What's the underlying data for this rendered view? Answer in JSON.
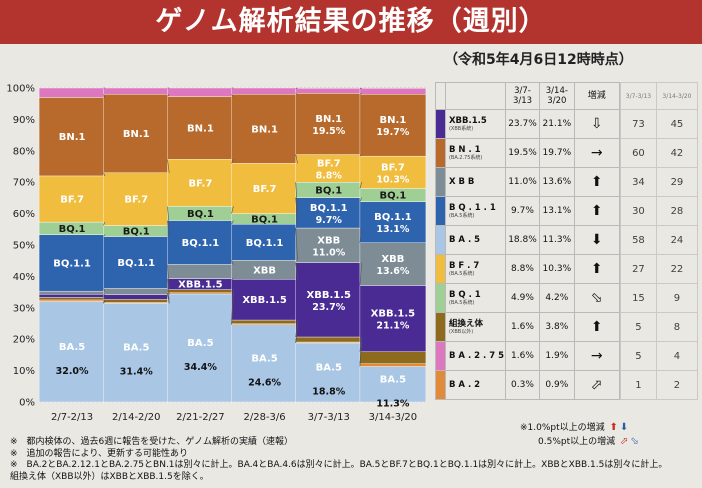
{
  "title": "ゲノム解析結果の推移（週別）",
  "subtitle": "（令和5年4月6日12時時点）",
  "chart_data": {
    "type": "bar",
    "stacked": true,
    "categories": [
      "2/7-2/13",
      "2/14-2/20",
      "2/21-2/27",
      "2/28-3/6",
      "3/7-3/13",
      "3/14-3/20"
    ],
    "yticks": [
      "0%",
      "10%",
      "20%",
      "30%",
      "40%",
      "50%",
      "60%",
      "70%",
      "80%",
      "90%",
      "100%"
    ],
    "ylim": [
      0,
      100
    ],
    "series": [
      {
        "name": "BA.5",
        "color": "#a9c6e4",
        "values": [
          32.0,
          31.4,
          34.4,
          24.6,
          18.8,
          11.3
        ]
      },
      {
        "name": "BA.2",
        "color": "#e08a3a",
        "values": [
          0.5,
          0.3,
          0.4,
          0.3,
          0.3,
          0.9
        ]
      },
      {
        "name": "組換え体",
        "color": "#8d6a1c",
        "values": [
          0.8,
          1.0,
          1.0,
          1.2,
          1.6,
          3.8
        ]
      },
      {
        "name": "XBB.1.5",
        "color": "#4a2b93",
        "values": [
          1.0,
          1.5,
          3.5,
          13.0,
          23.7,
          21.1
        ]
      },
      {
        "name": "XBB",
        "color": "#7d8c95",
        "values": [
          1.0,
          2.0,
          4.5,
          6.0,
          11.0,
          13.6
        ]
      },
      {
        "name": "BQ.1.1",
        "color": "#2e63ae",
        "values": [
          18.0,
          16.5,
          14.0,
          11.5,
          9.7,
          13.1
        ]
      },
      {
        "name": "BQ.1",
        "color": "#9fcf95",
        "values": [
          4.0,
          3.5,
          4.5,
          3.4,
          4.9,
          4.2
        ]
      },
      {
        "name": "BF.7",
        "color": "#f0bd3e",
        "values": [
          14.7,
          16.8,
          15.0,
          16.0,
          8.8,
          10.3
        ]
      },
      {
        "name": "BN.1",
        "color": "#b76a2c",
        "values": [
          25.0,
          25.0,
          20.0,
          22.0,
          19.5,
          19.7
        ]
      },
      {
        "name": "BA.2.75",
        "color": "#dd77c0",
        "values": [
          3.0,
          2.0,
          2.7,
          2.0,
          1.6,
          1.9
        ]
      }
    ],
    "segment_labels": [
      {
        "series": "BA.5",
        "labels": [
          "BA.5",
          "BA.5",
          "BA.5",
          "BA.5",
          "BA.5",
          "BA.5"
        ]
      },
      {
        "series": "XBB.1.5",
        "labels": [
          "",
          "",
          "XBB.1.5",
          "XBB.1.5",
          "XBB.1.5",
          "XBB.1.5"
        ]
      },
      {
        "series": "XBB",
        "labels": [
          "",
          "",
          "",
          "XBB",
          "XBB",
          "XBB"
        ]
      },
      {
        "series": "BQ.1.1",
        "labels": [
          "BQ.1.1",
          "BQ.1.1",
          "BQ.1.1",
          "BQ.1.1",
          "BQ.1.1",
          "BQ.1.1"
        ]
      },
      {
        "series": "BQ.1",
        "labels": [
          "BQ.1",
          "BQ.1",
          "BQ.1",
          "BQ.1",
          "BQ.1",
          "BQ.1"
        ]
      },
      {
        "series": "BF.7",
        "labels": [
          "BF.7",
          "BF.7",
          "BF.7",
          "BF.7",
          "BF.7",
          "BF.7"
        ]
      },
      {
        "series": "BN.1",
        "labels": [
          "BN.1",
          "BN.1",
          "BN.1",
          "BN.1",
          "BN.1",
          "BN.1"
        ]
      }
    ],
    "value_labels": [
      {
        "series": "BA.5",
        "labels": [
          "32.0%",
          "31.4%",
          "34.4%",
          "24.6%",
          "18.8%",
          "11.3%"
        ]
      },
      {
        "series": "XBB.1.5",
        "labels": [
          "",
          "",
          "",
          "",
          "23.7%",
          "21.1%"
        ]
      },
      {
        "series": "XBB",
        "labels": [
          "",
          "",
          "",
          "",
          "11.0%",
          "13.6%"
        ]
      },
      {
        "series": "BQ.1.1",
        "labels": [
          "",
          "",
          "",
          "",
          "9.7%",
          "13.1%"
        ]
      },
      {
        "series": "BF.7",
        "labels": [
          "",
          "",
          "",
          "",
          "8.8%",
          "10.3%"
        ]
      },
      {
        "series": "BN.1",
        "labels": [
          "",
          "",
          "",
          "",
          "19.5%",
          "19.7%"
        ]
      }
    ]
  },
  "table": {
    "header": [
      "3/7-\n3/13",
      "3/14-\n3/20",
      "増減"
    ],
    "rows": [
      {
        "name": "XBB.1.5",
        "note": "(XBB系統)",
        "color": "#4a2b93",
        "v1": "23.7%",
        "v2": "21.1%",
        "trend": "⇩",
        "trend_class": "grey"
      },
      {
        "name": "B N . 1",
        "note": "(BA.2.75系統)",
        "color": "#b76a2c",
        "v1": "19.5%",
        "v2": "19.7%",
        "trend": "→",
        "trend_class": "grey"
      },
      {
        "name": "X B B",
        "note": "",
        "color": "#7d8c95",
        "v1": "11.0%",
        "v2": "13.6%",
        "trend": "⬆",
        "trend_class": "up"
      },
      {
        "name": "B Q . 1 . 1",
        "note": "(BA.5系統)",
        "color": "#2e63ae",
        "v1": "9.7%",
        "v2": "13.1%",
        "trend": "⬆",
        "trend_class": "up"
      },
      {
        "name": "B A . 5",
        "note": "",
        "color": "#a9c6e4",
        "v1": "18.8%",
        "v2": "11.3%",
        "trend": "⬇",
        "trend_class": "down"
      },
      {
        "name": "B F . 7",
        "note": "(BA.5系統)",
        "color": "#f0bd3e",
        "v1": "8.8%",
        "v2": "10.3%",
        "trend": "⬆",
        "trend_class": "up"
      },
      {
        "name": "B Q . 1",
        "note": "(BA.5系統)",
        "color": "#9fcf95",
        "v1": "4.9%",
        "v2": "4.2%",
        "trend": "⬂",
        "trend_class": "down"
      },
      {
        "name": "組換え体",
        "note": "(XBB以外)",
        "color": "#8d6a1c",
        "v1": "1.6%",
        "v2": "3.8%",
        "trend": "⬆",
        "trend_class": "up"
      },
      {
        "name": "B A . 2 . 7 5",
        "note": "",
        "color": "#dd77c0",
        "v1": "1.6%",
        "v2": "1.9%",
        "trend": "→",
        "trend_class": "grey"
      },
      {
        "name": "B A . 2",
        "note": "",
        "color": "#e08a3a",
        "v1": "0.3%",
        "v2": "0.9%",
        "trend": "⬀",
        "trend_class": "up"
      }
    ]
  },
  "right_table": {
    "header": [
      "3/7-3/13",
      "3/14-3/20"
    ],
    "rows": [
      [
        "73",
        "45"
      ],
      [
        "60",
        "42"
      ],
      [
        "34",
        "29"
      ],
      [
        "30",
        "28"
      ],
      [
        "58",
        "24"
      ],
      [
        "27",
        "22"
      ],
      [
        "15",
        "9"
      ],
      [
        "5",
        "8"
      ],
      [
        "5",
        "4"
      ],
      [
        "1",
        "2"
      ]
    ]
  },
  "legend": {
    "line1": "※1.0%pt以上の増減",
    "line2": "0.5%pt以上の増減"
  },
  "notes": [
    "※　都内検体の、過去6週に報告を受けた、ゲノム解析の実績（速報）",
    "※　追加の報告により、更新する可能性あり",
    "※　BA.2とBA.2.12.1とBA.2.75とBN.1は別々に計上。BA.4とBA.4.6は別々に計上。BA.5とBF.7とBQ.1とBQ.1.1は別々に計上。XBBとXBB.1.5は別々に計上。",
    "組換え体（XBB以外）はXBBとXBB.1.5を除く。"
  ]
}
